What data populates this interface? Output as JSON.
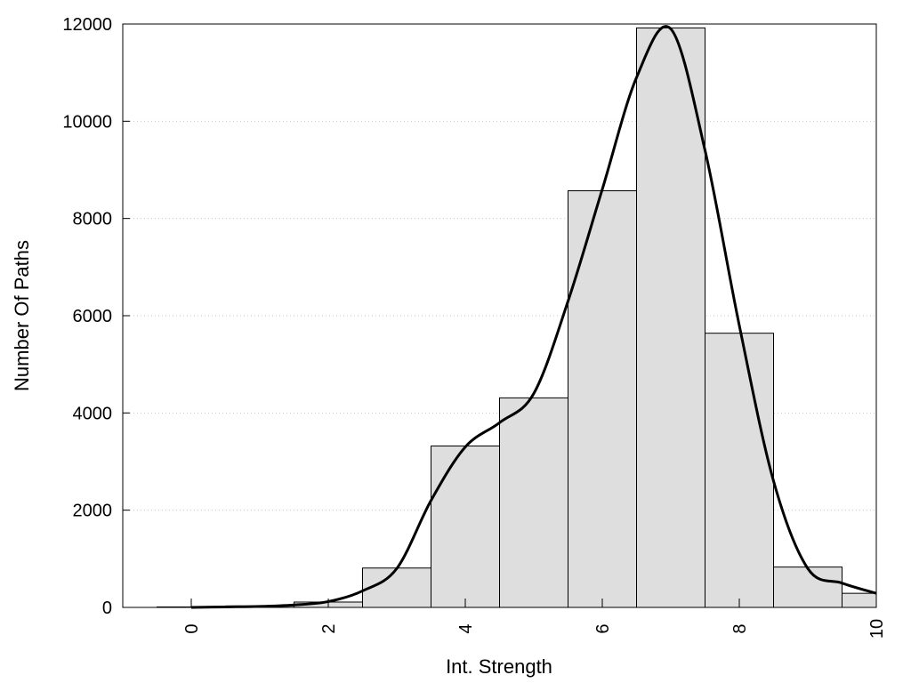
{
  "chart_data": {
    "type": "bar",
    "xlabel": "Int. Strength",
    "ylabel": "Number Of Paths",
    "xlim": [
      -1,
      10
    ],
    "ylim": [
      0,
      12000
    ],
    "x_ticks": [
      0,
      2,
      4,
      6,
      8,
      10
    ],
    "y_ticks": [
      0,
      2000,
      4000,
      6000,
      8000,
      10000,
      12000
    ],
    "grid": "horizontal dotted",
    "bar_color": "#dedede",
    "bars": [
      {
        "x": 0,
        "value": 10
      },
      {
        "x": 1,
        "value": 30
      },
      {
        "x": 2,
        "value": 110
      },
      {
        "x": 3,
        "value": 810
      },
      {
        "x": 4,
        "value": 3320
      },
      {
        "x": 5,
        "value": 4310
      },
      {
        "x": 6,
        "value": 8570
      },
      {
        "x": 7,
        "value": 11920
      },
      {
        "x": 8,
        "value": 5640
      },
      {
        "x": 9,
        "value": 830
      },
      {
        "x": 10,
        "value": 290
      }
    ],
    "curve": {
      "type": "line",
      "color": "#000000",
      "points": [
        [
          0,
          0
        ],
        [
          0.5,
          10
        ],
        [
          1,
          20
        ],
        [
          1.5,
          50
        ],
        [
          2,
          120
        ],
        [
          2.5,
          340
        ],
        [
          3,
          800
        ],
        [
          3.5,
          2200
        ],
        [
          4,
          3300
        ],
        [
          4.5,
          3800
        ],
        [
          5,
          4400
        ],
        [
          5.5,
          6300
        ],
        [
          6,
          8600
        ],
        [
          6.5,
          10900
        ],
        [
          7,
          11900
        ],
        [
          7.5,
          9400
        ],
        [
          8,
          5800
        ],
        [
          8.5,
          2600
        ],
        [
          9,
          800
        ],
        [
          9.5,
          500
        ],
        [
          10,
          290
        ]
      ]
    }
  }
}
